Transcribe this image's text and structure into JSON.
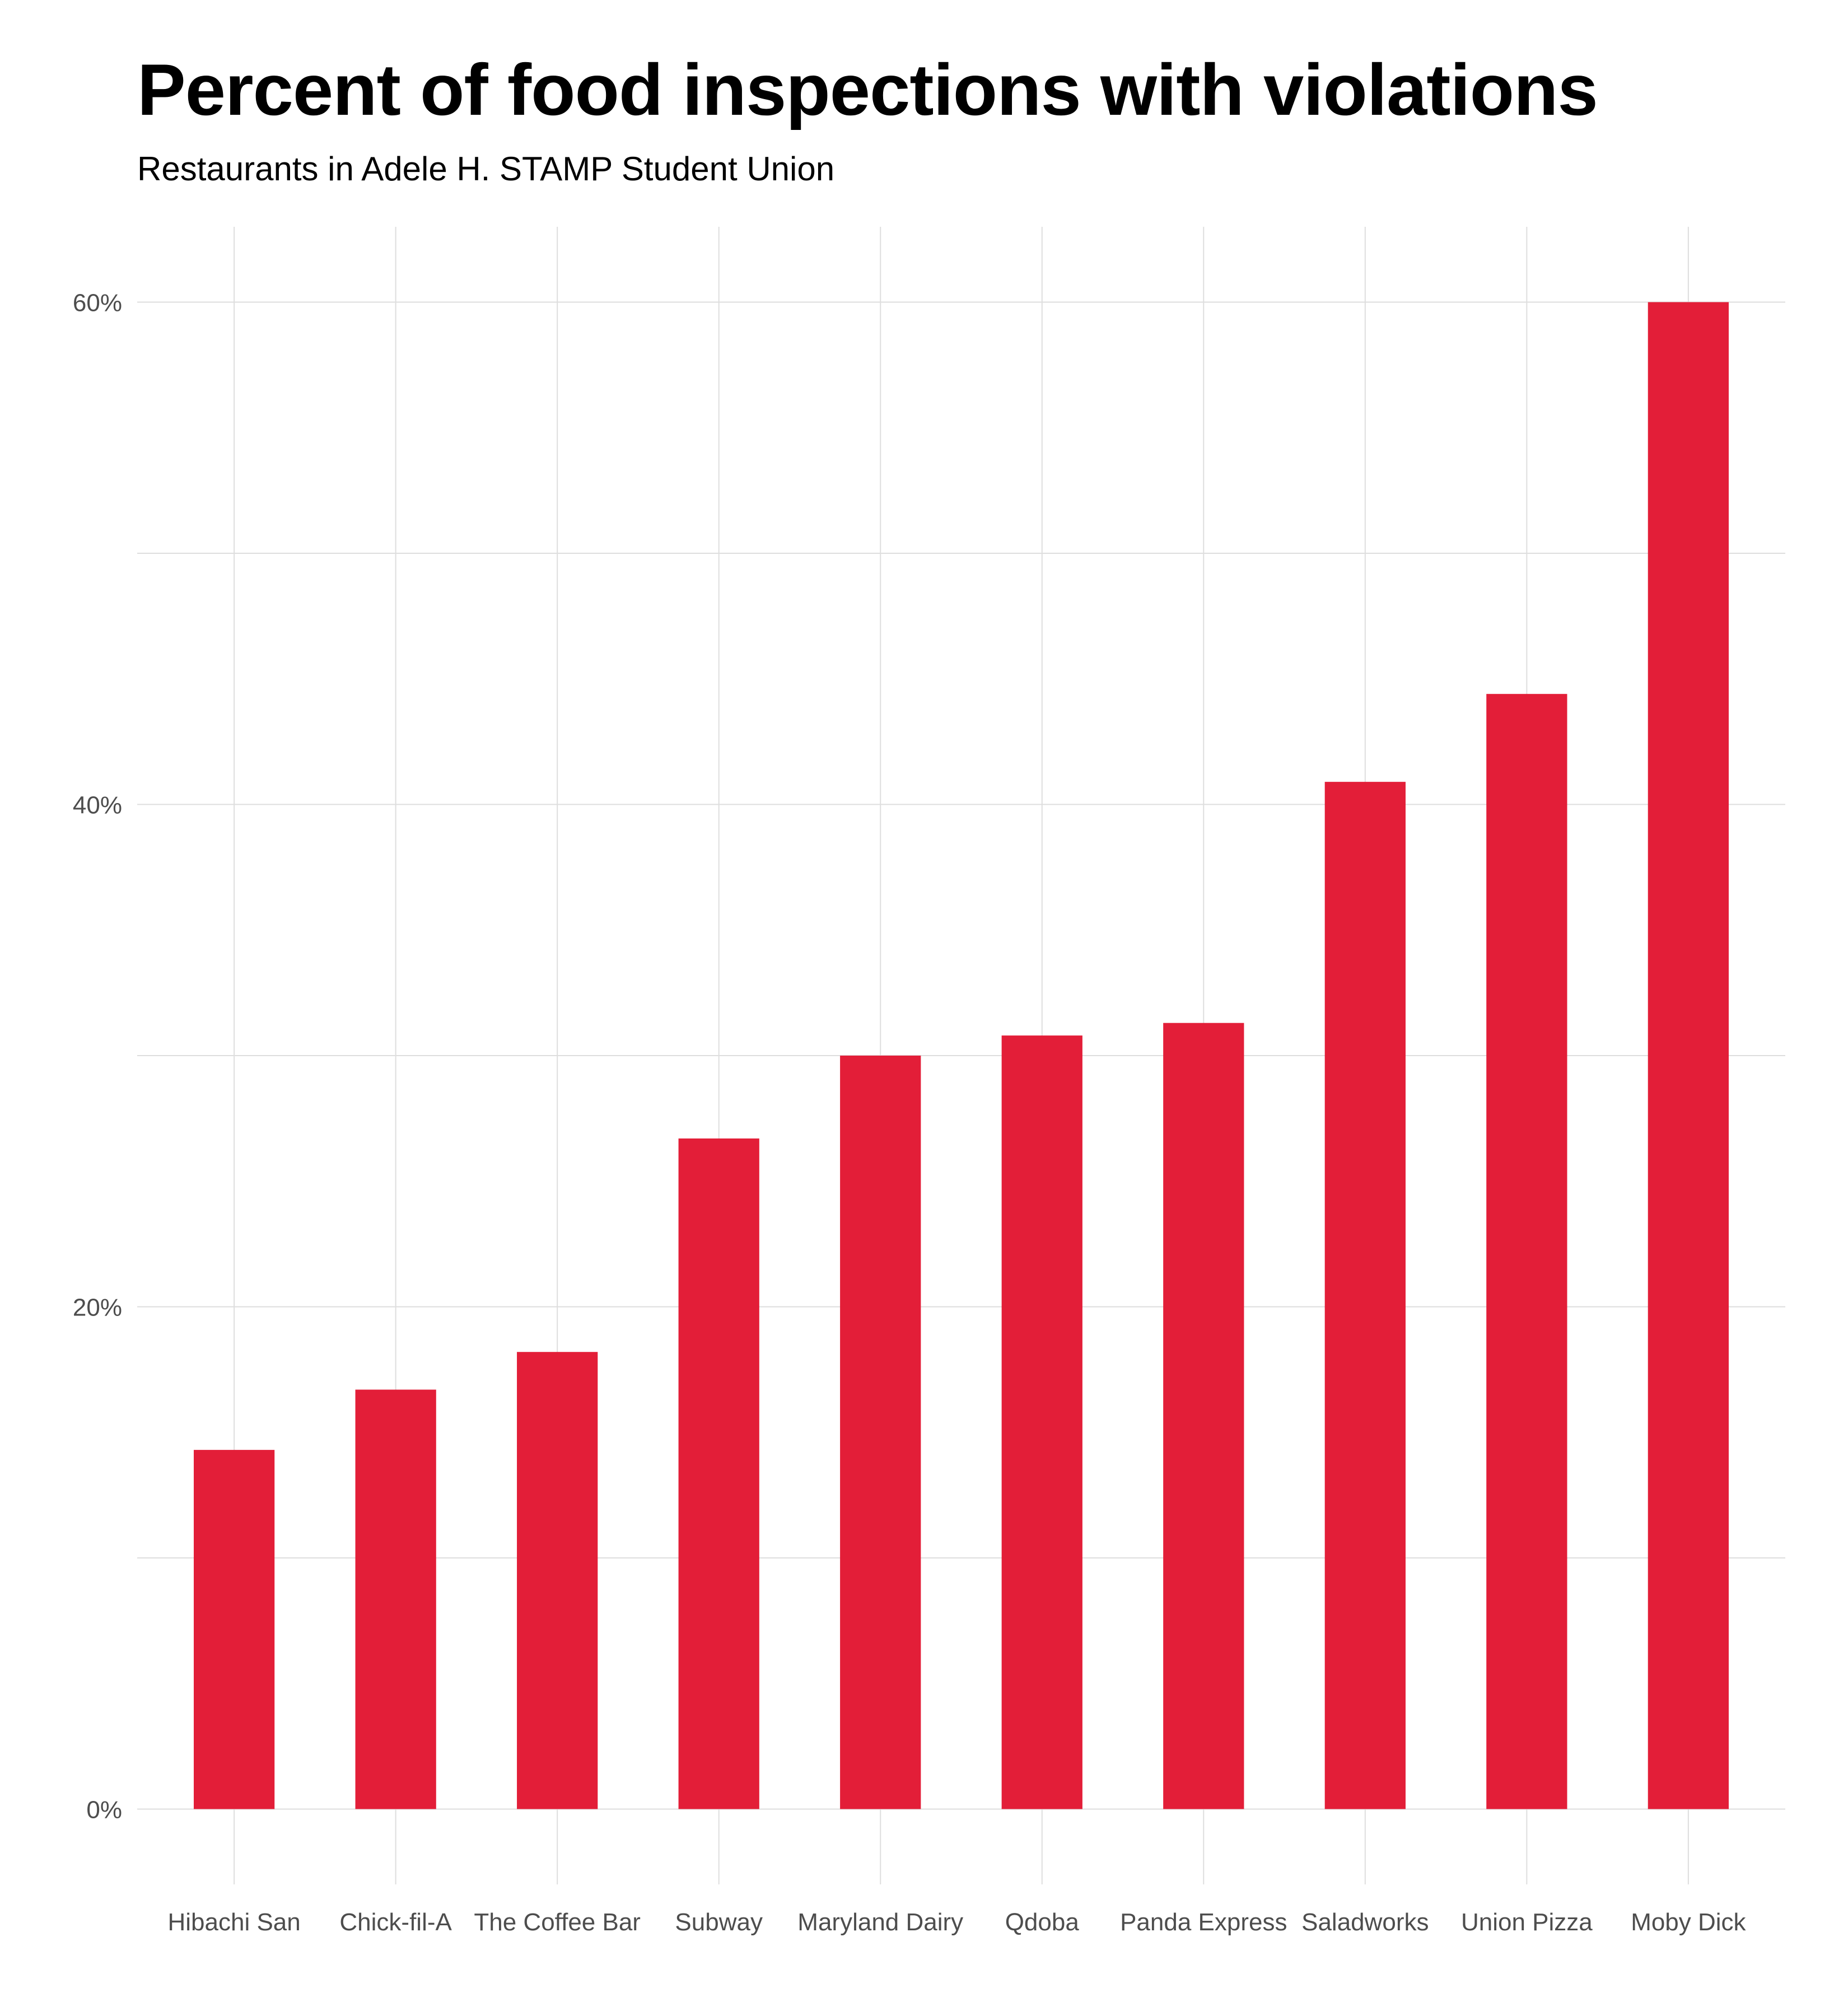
{
  "chart_data": {
    "type": "bar",
    "title": "Percent of food inspections with violations",
    "subtitle": "Restaurants in Adele H. STAMP Student Union",
    "xlabel": "",
    "ylabel": "",
    "categories": [
      "Hibachi San",
      "Chick-fil-A",
      "The Coffee Bar",
      "Subway",
      "Maryland Dairy",
      "Qdoba",
      "Panda Express",
      "Saladworks",
      "Union Pizza",
      "Moby Dick"
    ],
    "values": [
      14.3,
      16.7,
      18.2,
      26.7,
      30.0,
      30.8,
      31.3,
      40.9,
      44.4,
      60.0
    ],
    "ylim": [
      -3,
      63
    ],
    "yticks": [
      0,
      20,
      40,
      60
    ],
    "ytick_labels": [
      "0%",
      "20%",
      "40%",
      "60%"
    ],
    "grid": true,
    "legend": "none",
    "colors": {
      "bar": "#e31e38",
      "grid": "#dedede",
      "tick_text": "#4d4d4d",
      "title": "#000000"
    }
  }
}
